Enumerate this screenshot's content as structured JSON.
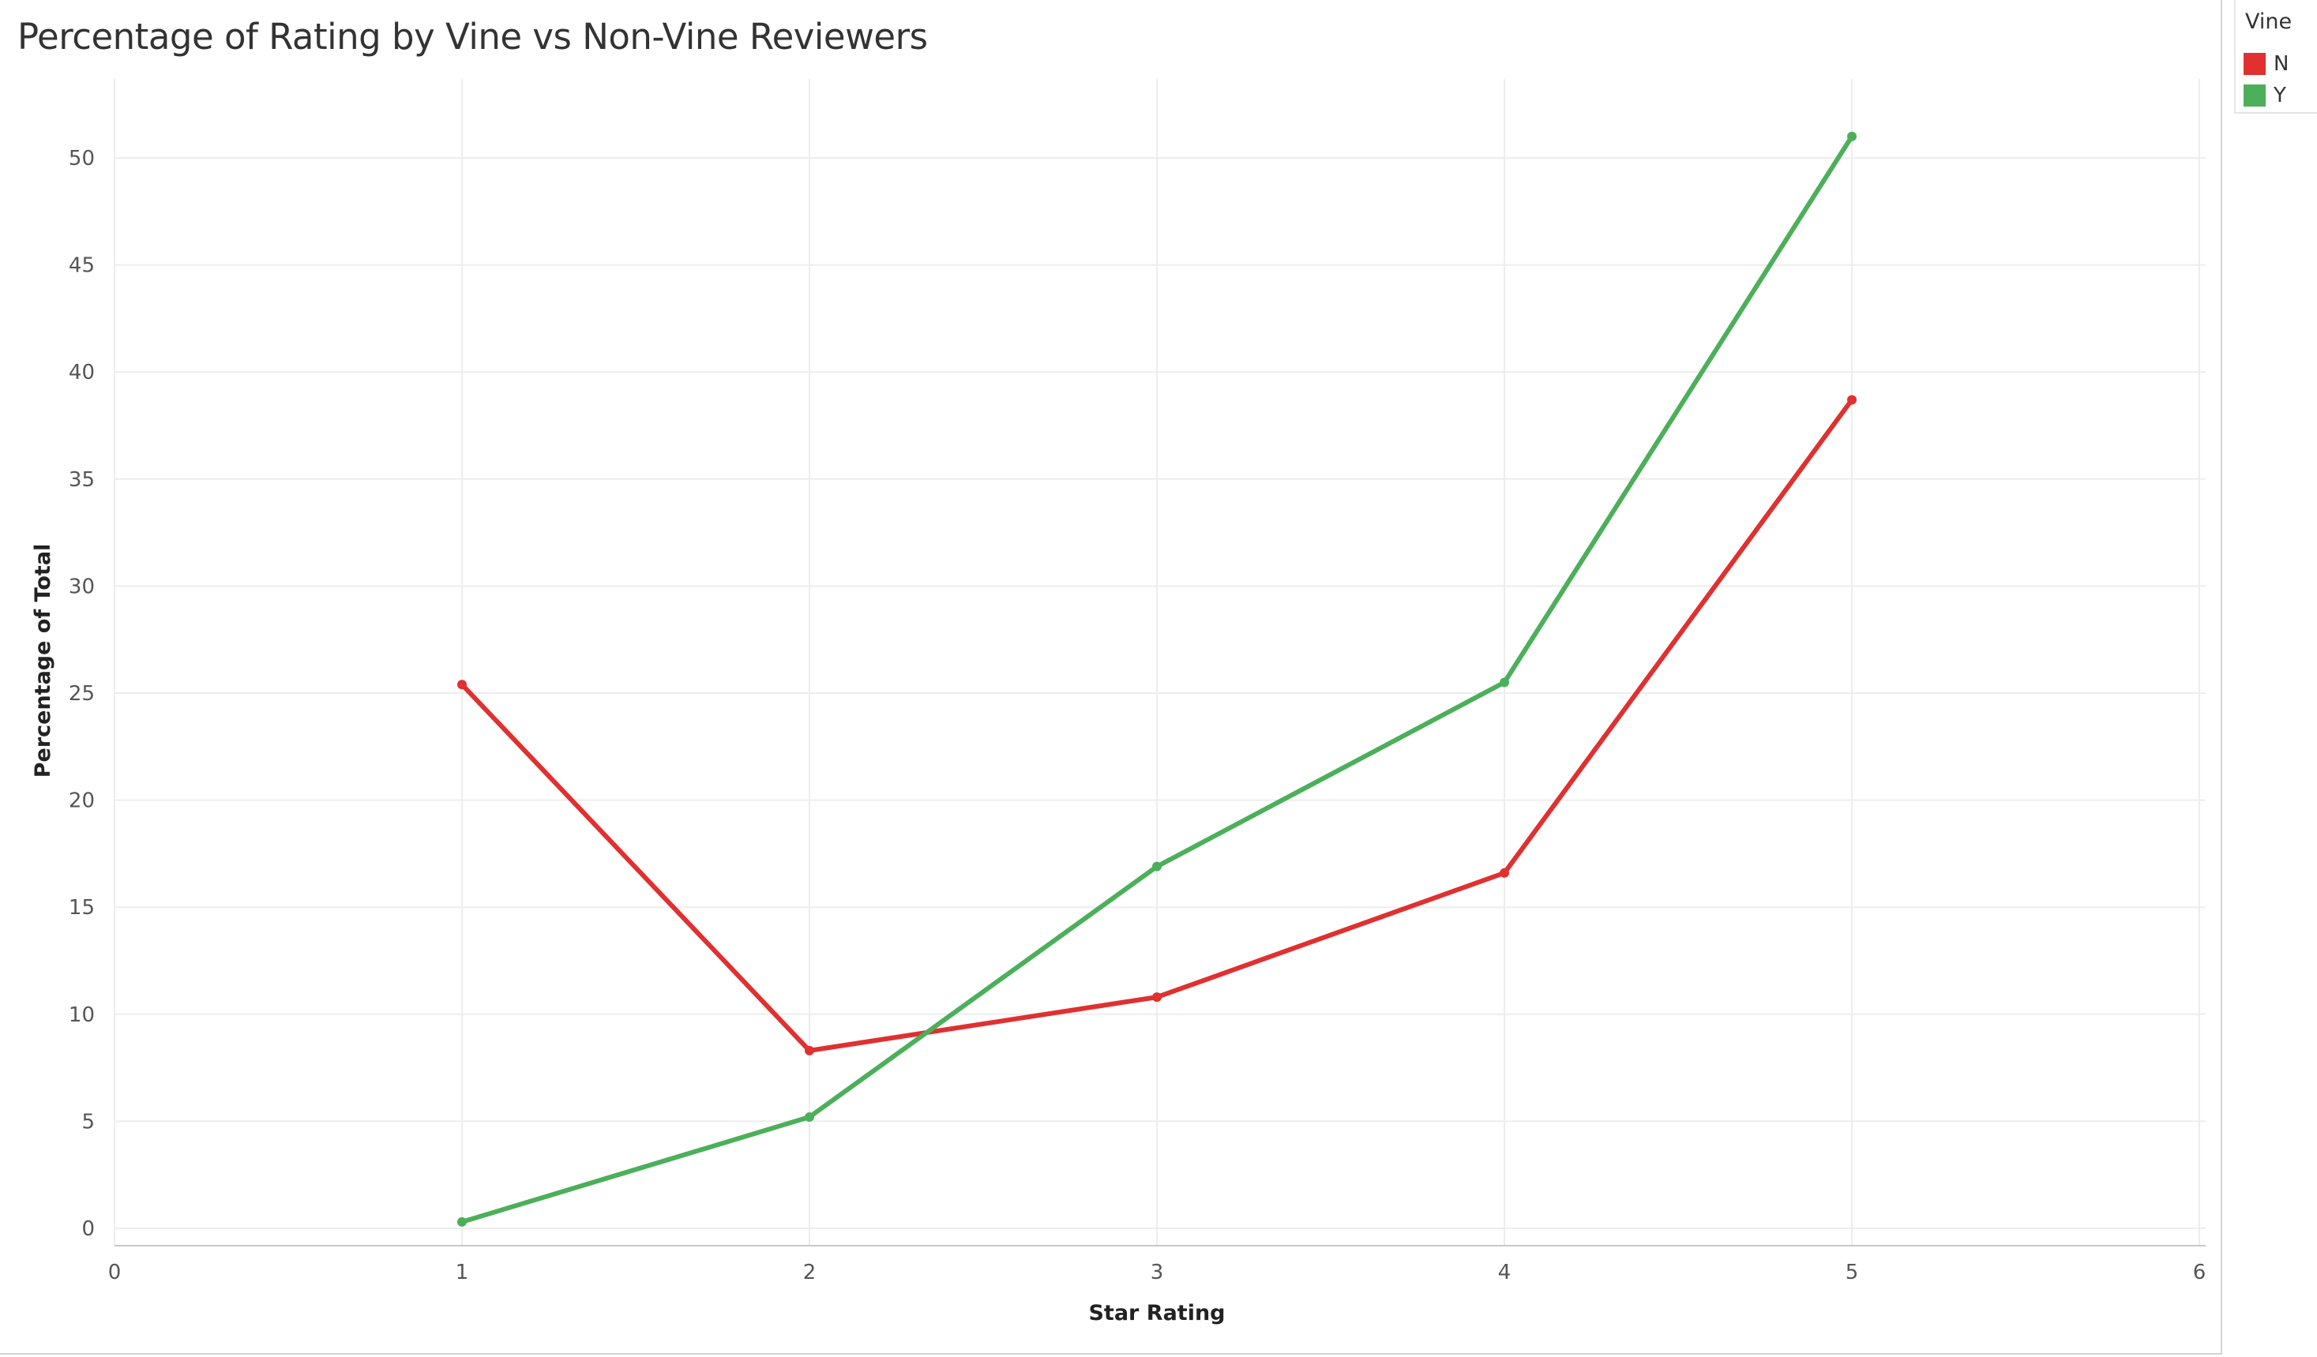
{
  "chart_data": {
    "type": "line",
    "title": "Percentage of Rating by Vine vs Non-Vine Reviewers",
    "xlabel": "Star Rating",
    "ylabel": "Percentage of Total",
    "xlim": [
      0,
      6
    ],
    "ylim": [
      -1,
      53
    ],
    "x_ticks": [
      0,
      1,
      2,
      3,
      4,
      5,
      6
    ],
    "y_ticks": [
      0,
      5,
      10,
      15,
      20,
      25,
      30,
      35,
      40,
      45,
      50
    ],
    "grid": true,
    "legend": {
      "title": "Vine",
      "placement": "top-right"
    },
    "series": [
      {
        "name": "N",
        "color": "#e03030",
        "x": [
          1,
          2,
          3,
          4,
          5
        ],
        "y": [
          25.4,
          8.3,
          10.8,
          16.6,
          38.7
        ]
      },
      {
        "name": "Y",
        "color": "#4caf5a",
        "x": [
          1,
          2,
          3,
          4,
          5
        ],
        "y": [
          0.3,
          5.2,
          16.9,
          25.5,
          51.0
        ]
      }
    ]
  }
}
